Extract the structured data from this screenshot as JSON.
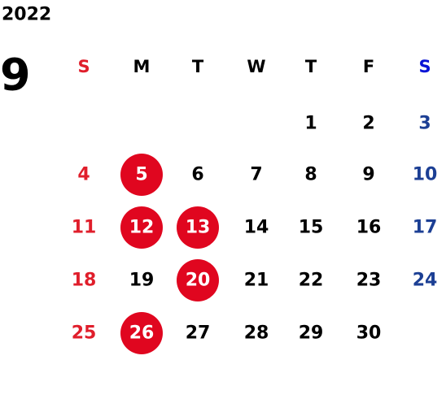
{
  "year": "2022",
  "month": "9",
  "weekdays": [
    "S",
    "M",
    "T",
    "W",
    "T",
    "F",
    "S"
  ],
  "weeks": [
    [
      null,
      null,
      null,
      null,
      {
        "day": 1
      },
      {
        "day": 2
      },
      {
        "day": 3
      }
    ],
    [
      {
        "day": 4
      },
      {
        "day": 5,
        "highlight": true
      },
      {
        "day": 6
      },
      {
        "day": 7
      },
      {
        "day": 8
      },
      {
        "day": 9
      },
      {
        "day": 10
      }
    ],
    [
      {
        "day": 11
      },
      {
        "day": 12,
        "highlight": true
      },
      {
        "day": 13,
        "highlight": true
      },
      {
        "day": 14
      },
      {
        "day": 15
      },
      {
        "day": 16
      },
      {
        "day": 17
      }
    ],
    [
      {
        "day": 18
      },
      {
        "day": 19
      },
      {
        "day": 20,
        "highlight": true
      },
      {
        "day": 21
      },
      {
        "day": 22
      },
      {
        "day": 23
      },
      {
        "day": 24
      }
    ],
    [
      {
        "day": 25
      },
      {
        "day": 26,
        "highlight": true
      },
      {
        "day": 27
      },
      {
        "day": 28
      },
      {
        "day": 29
      },
      {
        "day": 30
      },
      null
    ]
  ],
  "colors": {
    "sunday": "#e01e2b",
    "saturday": "#1c3f94",
    "saturday_header": "#0a14d6",
    "weekday": "#000000",
    "highlight": "#e0061f",
    "highlight_text": "#ffffff"
  }
}
